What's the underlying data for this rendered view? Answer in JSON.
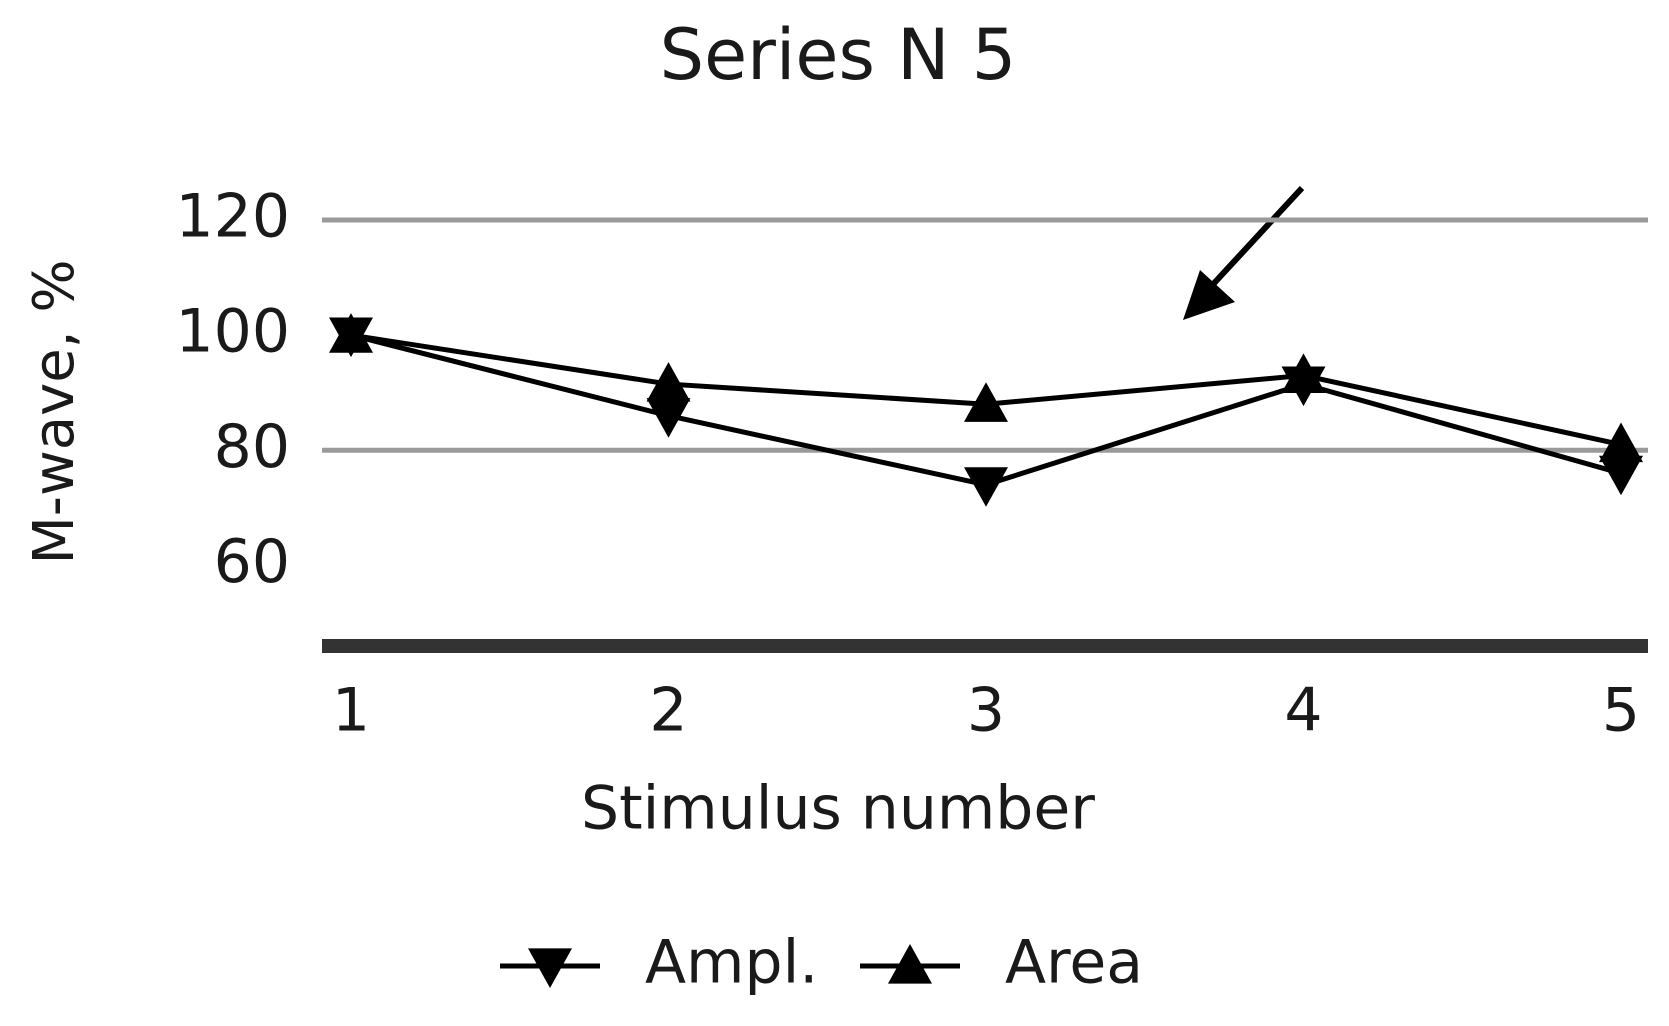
{
  "chart_data": {
    "type": "line",
    "title": "Series N 5",
    "x_label": "Stimulus number",
    "y_label": "M-wave, %",
    "categories": [
      "1",
      "2",
      "3",
      "4",
      "5"
    ],
    "series": [
      {
        "name": "Ampl.",
        "color": "#000000",
        "marker": "triangle-down",
        "values": [
          100,
          86,
          74,
          91.5,
          76
        ]
      },
      {
        "name": "Area",
        "color": "#000000",
        "marker": "triangle-up",
        "values": [
          100,
          91.5,
          88,
          93,
          81
        ]
      }
    ],
    "ylim": [
      46,
      120
    ],
    "yticks": [
      60,
      80,
      100,
      120
    ],
    "grid_lines": [
      80,
      120
    ],
    "legend": "bottom"
  }
}
